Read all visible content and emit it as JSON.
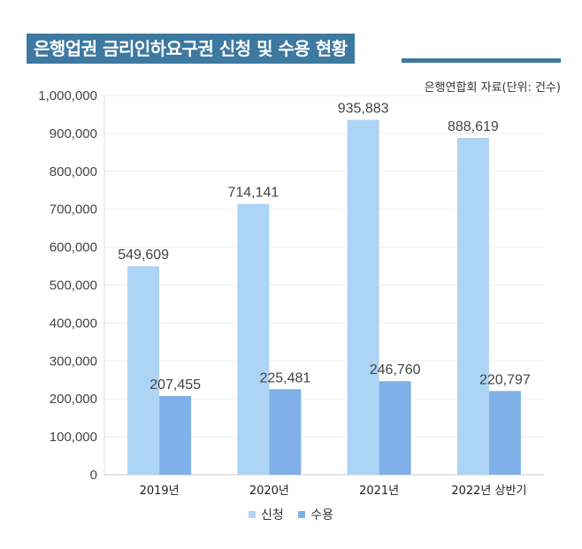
{
  "title": "은행업권 금리인하요구권 신청 및 수용 현황",
  "source_note": "은행연합회 자료(단위: 건수)",
  "colors": {
    "title_bg": "#3d79a1",
    "series1": "#aed4f5",
    "series2": "#7fb0e8"
  },
  "chart_data": {
    "type": "bar",
    "title": "은행업권 금리인하요구권 신청 및 수용 현황",
    "categories": [
      "2019년",
      "2020년",
      "2021년",
      "2022년 상반기"
    ],
    "series": [
      {
        "name": "신청",
        "values": [
          549609,
          714141,
          935883,
          888619
        ]
      },
      {
        "name": "수용",
        "values": [
          207455,
          225481,
          246760,
          220797
        ]
      }
    ],
    "ylim": [
      0,
      1000000
    ],
    "yticks": [
      0,
      100000,
      200000,
      300000,
      400000,
      500000,
      600000,
      700000,
      800000,
      900000,
      1000000
    ],
    "xlabel": "",
    "ylabel": "",
    "grid": true,
    "legend": "bottom"
  }
}
